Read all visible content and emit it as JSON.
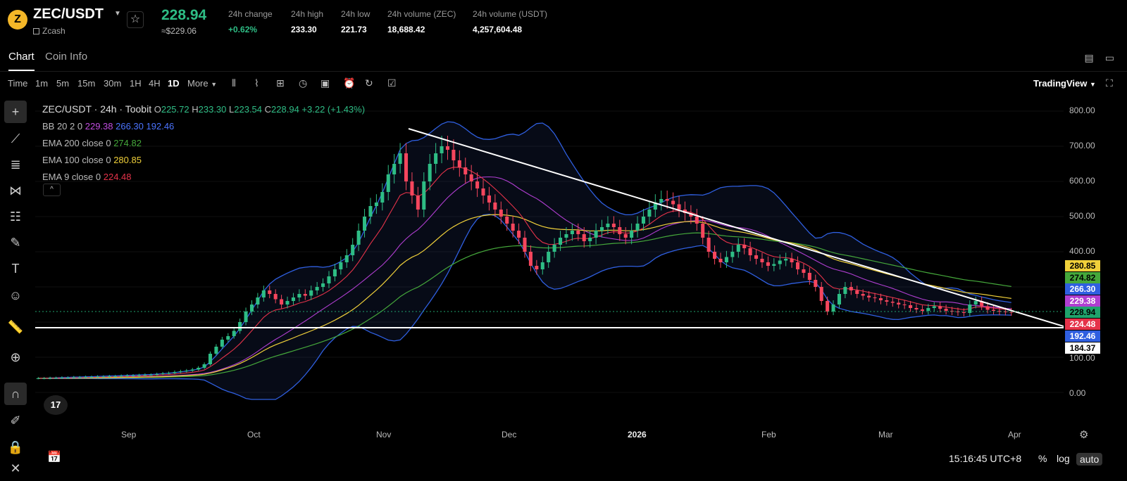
{
  "header": {
    "symbol": "ZEC/USDT",
    "coin_logo": "Z",
    "coin_name": "Zcash",
    "last_price": "228.94",
    "price_usd": "≈$229.06",
    "stats": [
      {
        "label": "24h change",
        "value": "+0.62%",
        "tone": "up"
      },
      {
        "label": "24h high",
        "value": "233.30",
        "tone": "neutral"
      },
      {
        "label": "24h low",
        "value": "221.73",
        "tone": "neutral"
      },
      {
        "label": "24h volume (ZEC)",
        "value": "18,688.42",
        "tone": "neutral"
      },
      {
        "label": "24h volume (USDT)",
        "value": "4,257,604.48",
        "tone": "neutral"
      }
    ]
  },
  "tabs": [
    {
      "label": "Chart",
      "active": true
    },
    {
      "label": "Coin Info",
      "active": false
    }
  ],
  "toolbar": {
    "timeframes": [
      "Time",
      "1m",
      "5m",
      "15m",
      "30m",
      "1H",
      "4H",
      "1D"
    ],
    "active_timeframe": "1D",
    "more_label": "More",
    "view_selector": "TradingView",
    "icons": [
      "candle-type-icon",
      "indicator-icon",
      "layout-icon",
      "replay-icon",
      "screenshot-icon",
      "alert-icon",
      "undo-icon",
      "checklist-icon"
    ]
  },
  "legend": {
    "title_text": "ZEC/USDT · 24h · Toobit",
    "ohlc": {
      "o_label": "O",
      "o": "225.72",
      "h_label": "H",
      "h": "233.30",
      "l_label": "L",
      "l": "223.54",
      "c_label": "C",
      "c": "228.94",
      "change": "+3.22 (+1.43%)"
    },
    "bb": {
      "label": "BB 20 2 0",
      "v1": "229.38",
      "v2": "266.30",
      "v3": "192.46"
    },
    "ema200": {
      "label": "EMA 200 close 0",
      "value": "274.82"
    },
    "ema100": {
      "label": "EMA 100 close 0",
      "value": "280.85"
    },
    "ema9": {
      "label": "EMA 9 close 0",
      "value": "224.48"
    },
    "collapse_symbol": "^"
  },
  "y_axis_labels": [
    "800.00",
    "700.00",
    "600.00",
    "500.00",
    "400.00",
    "100.00",
    "0.00"
  ],
  "price_tags": [
    {
      "value": "280.85",
      "bg": "#f0d03a",
      "fg": "#000"
    },
    {
      "value": "274.82",
      "bg": "#45a83b",
      "fg": "#000"
    },
    {
      "value": "266.30",
      "bg": "#2f5fe0",
      "fg": "#fff"
    },
    {
      "value": "229.38",
      "bg": "#b03ed1",
      "fg": "#fff"
    },
    {
      "value": "228.94",
      "bg": "#1fa36c",
      "fg": "#000"
    },
    {
      "value": "224.48",
      "bg": "#e5334a",
      "fg": "#fff"
    },
    {
      "value": "192.46",
      "bg": "#2f5fe0",
      "fg": "#fff"
    },
    {
      "value": "184.37",
      "bg": "#ffffff",
      "fg": "#000"
    }
  ],
  "x_axis_labels": [
    "Sep",
    "Oct",
    "Nov",
    "Dec",
    "2026",
    "Feb",
    "Mar",
    "Apr"
  ],
  "footer": {
    "time": "15:16:45 UTC+8",
    "percent": "%",
    "log": "log",
    "auto": "auto"
  },
  "tv_logo": "17",
  "colors": {
    "up": "#2ebd85",
    "down": "#f6465d",
    "bb": "#2f5fe0",
    "bb_mid": "#b03ed1",
    "ema200": "#45a83b",
    "ema100": "#f0d03a",
    "ema9": "#e5334a"
  },
  "chart_data": {
    "type": "line",
    "y_axis_ticks": [
      800,
      700,
      600,
      500,
      400,
      100,
      0
    ],
    "ylim": [
      -30,
      830
    ],
    "x_axis_ticks": [
      "Sep",
      "Oct",
      "Nov",
      "Dec",
      "2026",
      "Feb",
      "Mar",
      "Apr"
    ],
    "series_close": [
      40,
      40,
      41,
      41,
      42,
      42,
      43,
      43,
      44,
      44,
      45,
      45,
      46,
      46,
      47,
      48,
      48,
      49,
      50,
      50,
      52,
      54,
      55,
      58,
      60,
      62,
      65,
      70,
      80,
      110,
      130,
      150,
      160,
      175,
      200,
      230,
      250,
      270,
      290,
      280,
      265,
      250,
      260,
      270,
      280,
      275,
      290,
      300,
      310,
      330,
      350,
      370,
      390,
      420,
      460,
      500,
      530,
      540,
      570,
      620,
      650,
      680,
      600,
      560,
      520,
      600,
      650,
      680,
      700,
      690,
      660,
      640,
      620,
      600,
      580,
      560,
      540,
      520,
      500,
      480,
      460,
      440,
      400,
      360,
      350,
      370,
      400,
      420,
      440,
      450,
      460,
      450,
      430,
      440,
      460,
      470,
      480,
      470,
      450,
      440,
      460,
      480,
      500,
      520,
      540,
      550,
      545,
      535,
      520,
      510,
      500,
      480,
      440,
      400,
      380,
      370,
      385,
      400,
      420,
      410,
      390,
      380,
      370,
      360,
      365,
      375,
      380,
      370,
      350,
      340,
      320,
      300,
      260,
      230,
      250,
      280,
      300,
      290,
      280,
      275,
      270,
      268,
      262,
      258,
      255,
      250,
      248,
      240,
      236,
      232,
      240,
      245,
      238,
      232,
      230,
      228,
      226,
      250,
      260,
      245,
      235,
      232,
      230,
      229,
      228
    ]
  }
}
